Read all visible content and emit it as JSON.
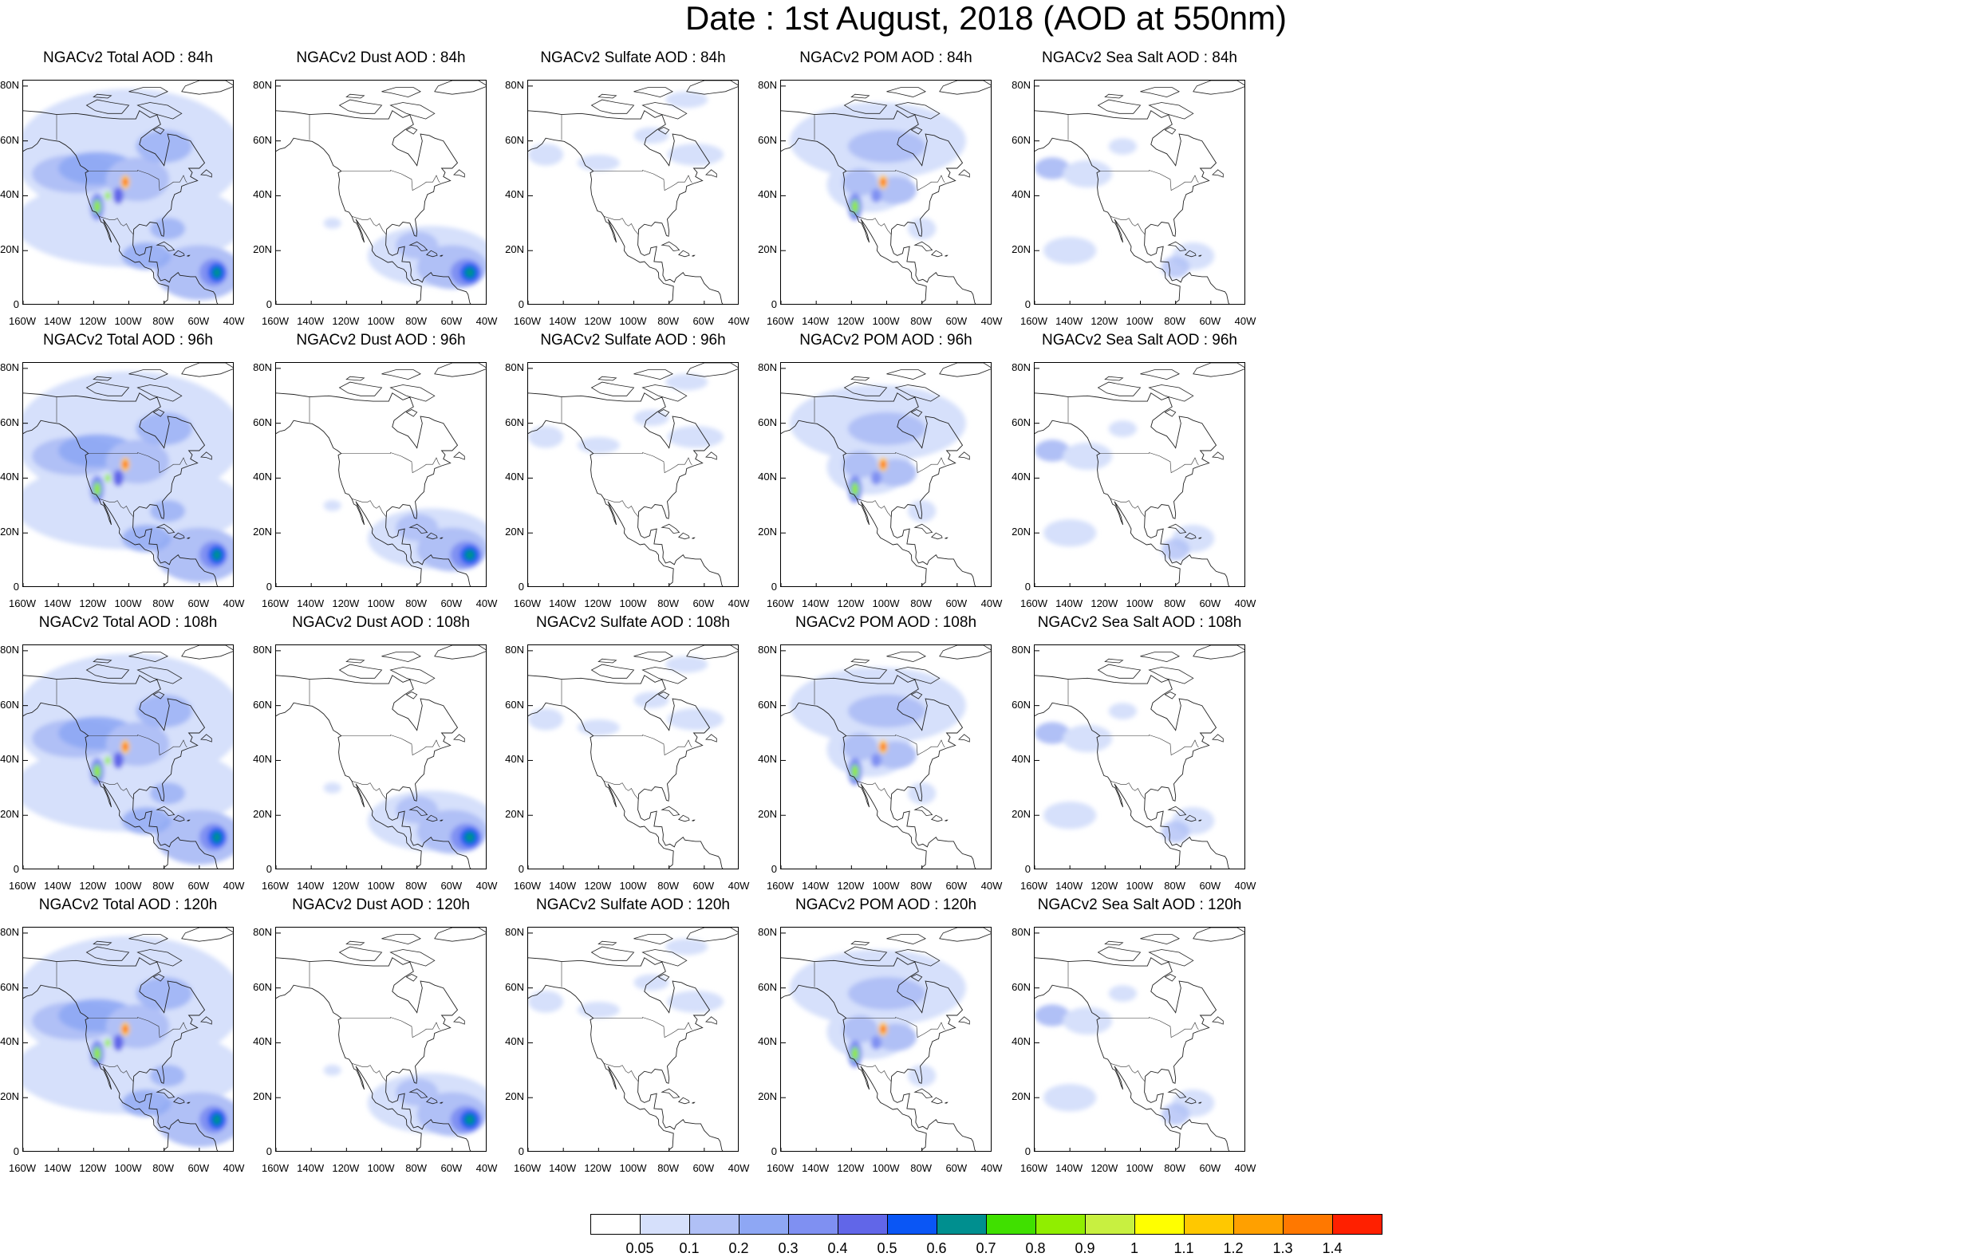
{
  "title": "Date : 1st August, 2018 (AOD at 550nm)",
  "panels": [
    {
      "title": "NGACv2 Total AOD : 84h",
      "kind": "total"
    },
    {
      "title": "NGACv2 Dust AOD : 84h",
      "kind": "dust"
    },
    {
      "title": "NGACv2 Sulfate AOD : 84h",
      "kind": "sulfate"
    },
    {
      "title": "NGACv2 POM AOD : 84h",
      "kind": "pom"
    },
    {
      "title": "NGACv2 Sea Salt AOD : 84h",
      "kind": "seasalt"
    },
    {
      "title": "NGACv2 Total AOD : 96h",
      "kind": "total"
    },
    {
      "title": "NGACv2 Dust AOD : 96h",
      "kind": "dust"
    },
    {
      "title": "NGACv2 Sulfate AOD : 96h",
      "kind": "sulfate"
    },
    {
      "title": "NGACv2 POM AOD : 96h",
      "kind": "pom"
    },
    {
      "title": "NGACv2 Sea Salt AOD : 96h",
      "kind": "seasalt"
    },
    {
      "title": "NGACv2 Total AOD : 108h",
      "kind": "total"
    },
    {
      "title": "NGACv2 Dust AOD : 108h",
      "kind": "dust"
    },
    {
      "title": "NGACv2 Sulfate AOD : 108h",
      "kind": "sulfate"
    },
    {
      "title": "NGACv2 POM AOD : 108h",
      "kind": "pom"
    },
    {
      "title": "NGACv2 Sea Salt AOD : 108h",
      "kind": "seasalt"
    },
    {
      "title": "NGACv2 Total AOD : 120h",
      "kind": "total"
    },
    {
      "title": "NGACv2 Dust AOD : 120h",
      "kind": "dust"
    },
    {
      "title": "NGACv2 Sulfate AOD : 120h",
      "kind": "sulfate"
    },
    {
      "title": "NGACv2 POM AOD : 120h",
      "kind": "pom"
    },
    {
      "title": "NGACv2 Sea Salt  AOD : 120h",
      "kind": "seasalt"
    }
  ],
  "y_ticks": [
    "80N",
    "60N",
    "40N",
    "20N",
    "0"
  ],
  "x_ticks": [
    "160W",
    "140W",
    "120W",
    "100W",
    "80W",
    "60W",
    "40W"
  ],
  "colorbar": {
    "colors": [
      "#ffffff",
      "#d6e0fb",
      "#b0c0f6",
      "#8ea7f4",
      "#7f90f2",
      "#6166e8",
      "#0a56f5",
      "#008f8f",
      "#40e000",
      "#90ee00",
      "#c8f040",
      "#ffff00",
      "#ffc800",
      "#ffa000",
      "#ff7800",
      "#ff2000"
    ],
    "labels": [
      "0.05",
      "0.1",
      "0.2",
      "0.3",
      "0.4",
      "0.5",
      "0.6",
      "0.7",
      "0.8",
      "0.9",
      "1",
      "1.1",
      "1.2",
      "1.3",
      "1.4"
    ]
  }
}
